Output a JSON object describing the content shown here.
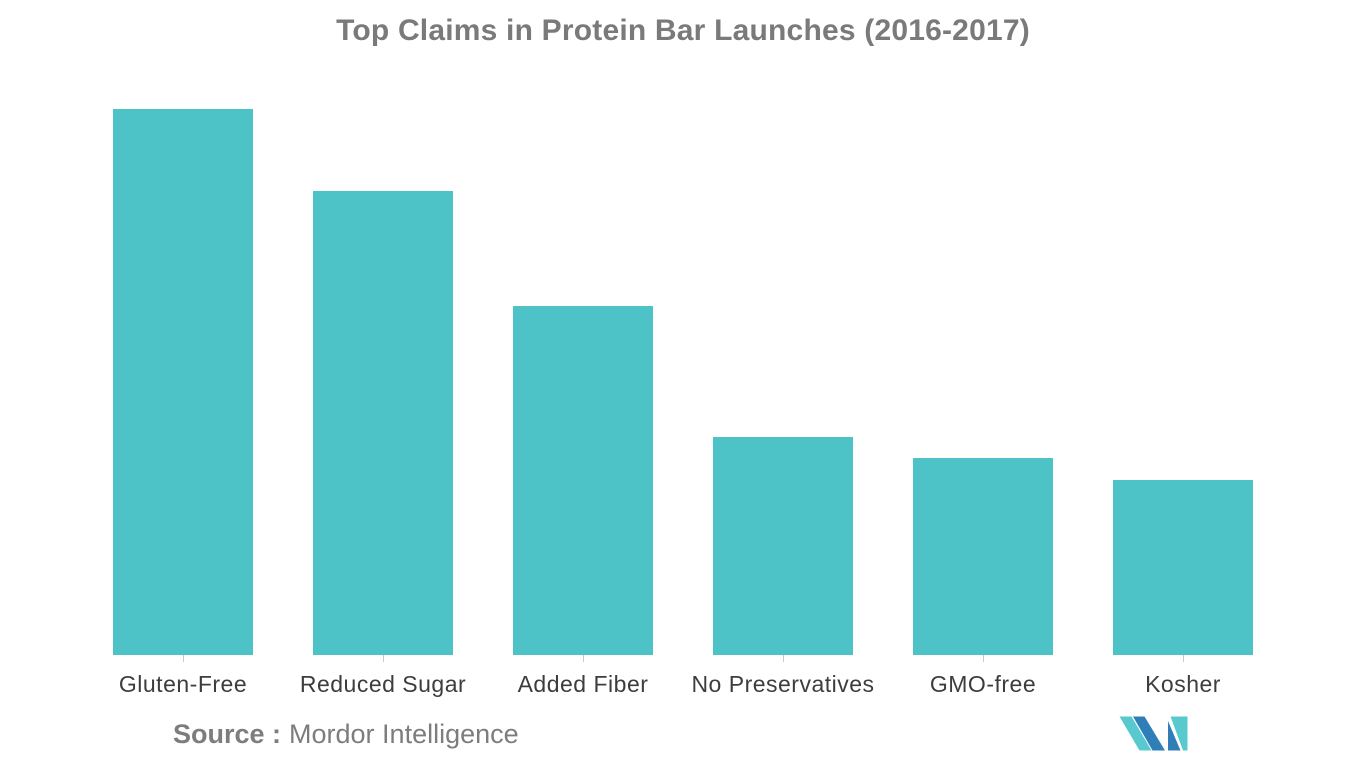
{
  "title": "Top Claims in Protein Bar Launches (2016-2017)",
  "source": {
    "label": "Source :",
    "name": "Mordor Intelligence"
  },
  "colors": {
    "bar": "#4dc3c8",
    "title_text": "#7a7a7a",
    "axis_label_text": "#3d3d3d",
    "tick": "#c9c9c9",
    "logo_teal": "#58c9cf",
    "logo_blue": "#2f7eb7"
  },
  "chart_data": {
    "type": "bar",
    "title": "Top Claims in Protein Bar Launches (2016-2017)",
    "categories": [
      "Gluten-Free",
      "Reduced Sugar",
      "Added Fiber",
      "No Preservatives",
      "GMO-free",
      "Kosher"
    ],
    "values": [
      100,
      85,
      64,
      40,
      36,
      32
    ],
    "xlabel": "",
    "ylabel": "",
    "ylim": [
      0,
      100
    ],
    "value_basis": "relative index (tallest bar = 100); no y-axis, gridlines or data labels shown",
    "grid": false,
    "legend": false,
    "bar_color": "#4dc3c8"
  }
}
